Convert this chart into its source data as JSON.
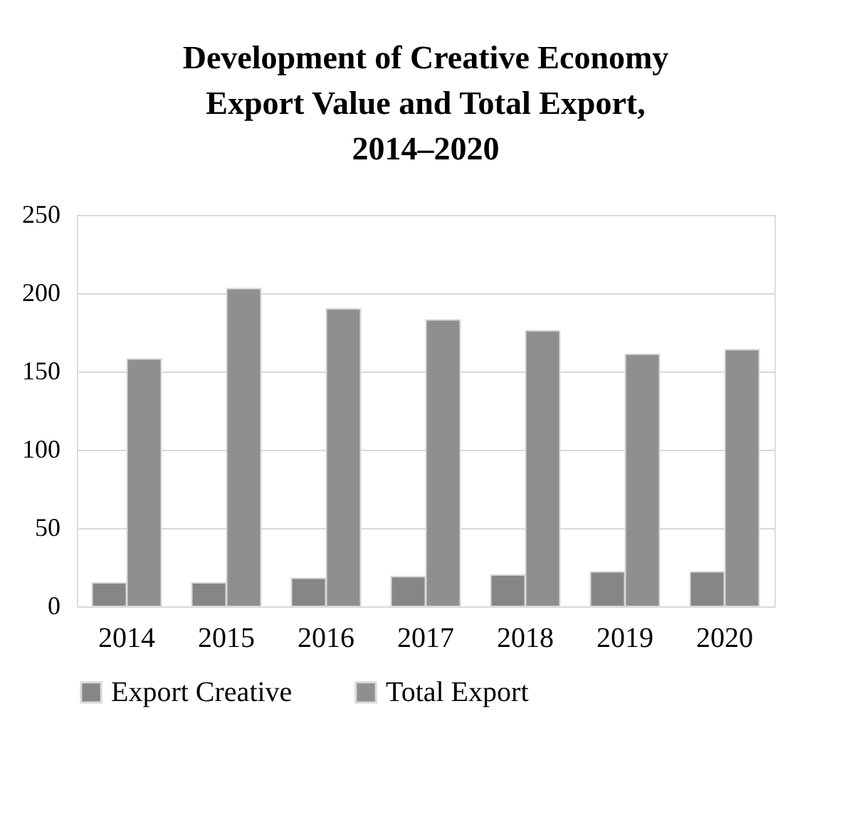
{
  "chart_data": {
    "type": "bar",
    "title": "Development of Creative Economy Export Value and Total Export, 2014–2020",
    "categories": [
      "2014",
      "2015",
      "2016",
      "2017",
      "2018",
      "2019",
      "2020"
    ],
    "series": [
      {
        "name": "Export Creative",
        "color": "#868686",
        "values": [
          15,
          15,
          18,
          19,
          20,
          22,
          22
        ]
      },
      {
        "name": "Total Export",
        "color": "#8f8f8f",
        "values": [
          158,
          203,
          190,
          183,
          176,
          161,
          164
        ]
      }
    ],
    "ylim": [
      0,
      250
    ],
    "yticks": [
      0,
      50,
      100,
      150,
      200,
      250
    ],
    "grid": "y",
    "legend": "bottom"
  }
}
